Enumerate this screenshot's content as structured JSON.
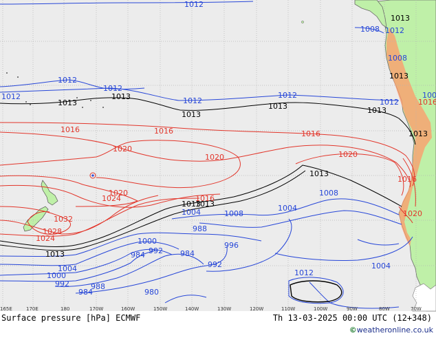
{
  "map": {
    "title": "Surface pressure [hPa] ECMWF",
    "valid_time": "Th 13-03-2025 00:00 UTC (12+348)",
    "credit": "©weatheronline.co.uk",
    "credit_prefix": "©",
    "credit_text": "weatheronline.co.uk",
    "longitude_ticks": [
      "165E",
      "170E",
      "180",
      "170W",
      "160W",
      "150W",
      "140W",
      "130W",
      "120W",
      "110W",
      "100W",
      "90W",
      "80W",
      "70W"
    ],
    "colors": {
      "ocean": "#ececec",
      "land": "#bff0a8",
      "land_highlands": "#ff9a6a",
      "low_pressure": "#2646d8",
      "high_pressure": "#e2352a",
      "reference_isobar": "#000000",
      "grid": "#b4b4b4"
    },
    "isobar_labels": {
      "blue": [
        "1012",
        "1012",
        "1012",
        "1012",
        "1012",
        "1012",
        "1012",
        "1012",
        "1008",
        "1008",
        "1008",
        "1008",
        "1008",
        "1004",
        "1004",
        "1004",
        "1004",
        "1000",
        "1000",
        "996",
        "992",
        "992",
        "992",
        "988",
        "988",
        "984",
        "984",
        "984",
        "980",
        "1012"
      ],
      "red": [
        "1016",
        "1016",
        "1016",
        "1020",
        "1020",
        "1020",
        "1020",
        "1024",
        "1024",
        "1028",
        "1032",
        "1016",
        "1016",
        "1020",
        "1016"
      ],
      "black": [
        "1013",
        "1013",
        "1013",
        "1013",
        "1013",
        "1013",
        "1013",
        "1013",
        "1013",
        "1013",
        "1013",
        "1013"
      ]
    }
  }
}
